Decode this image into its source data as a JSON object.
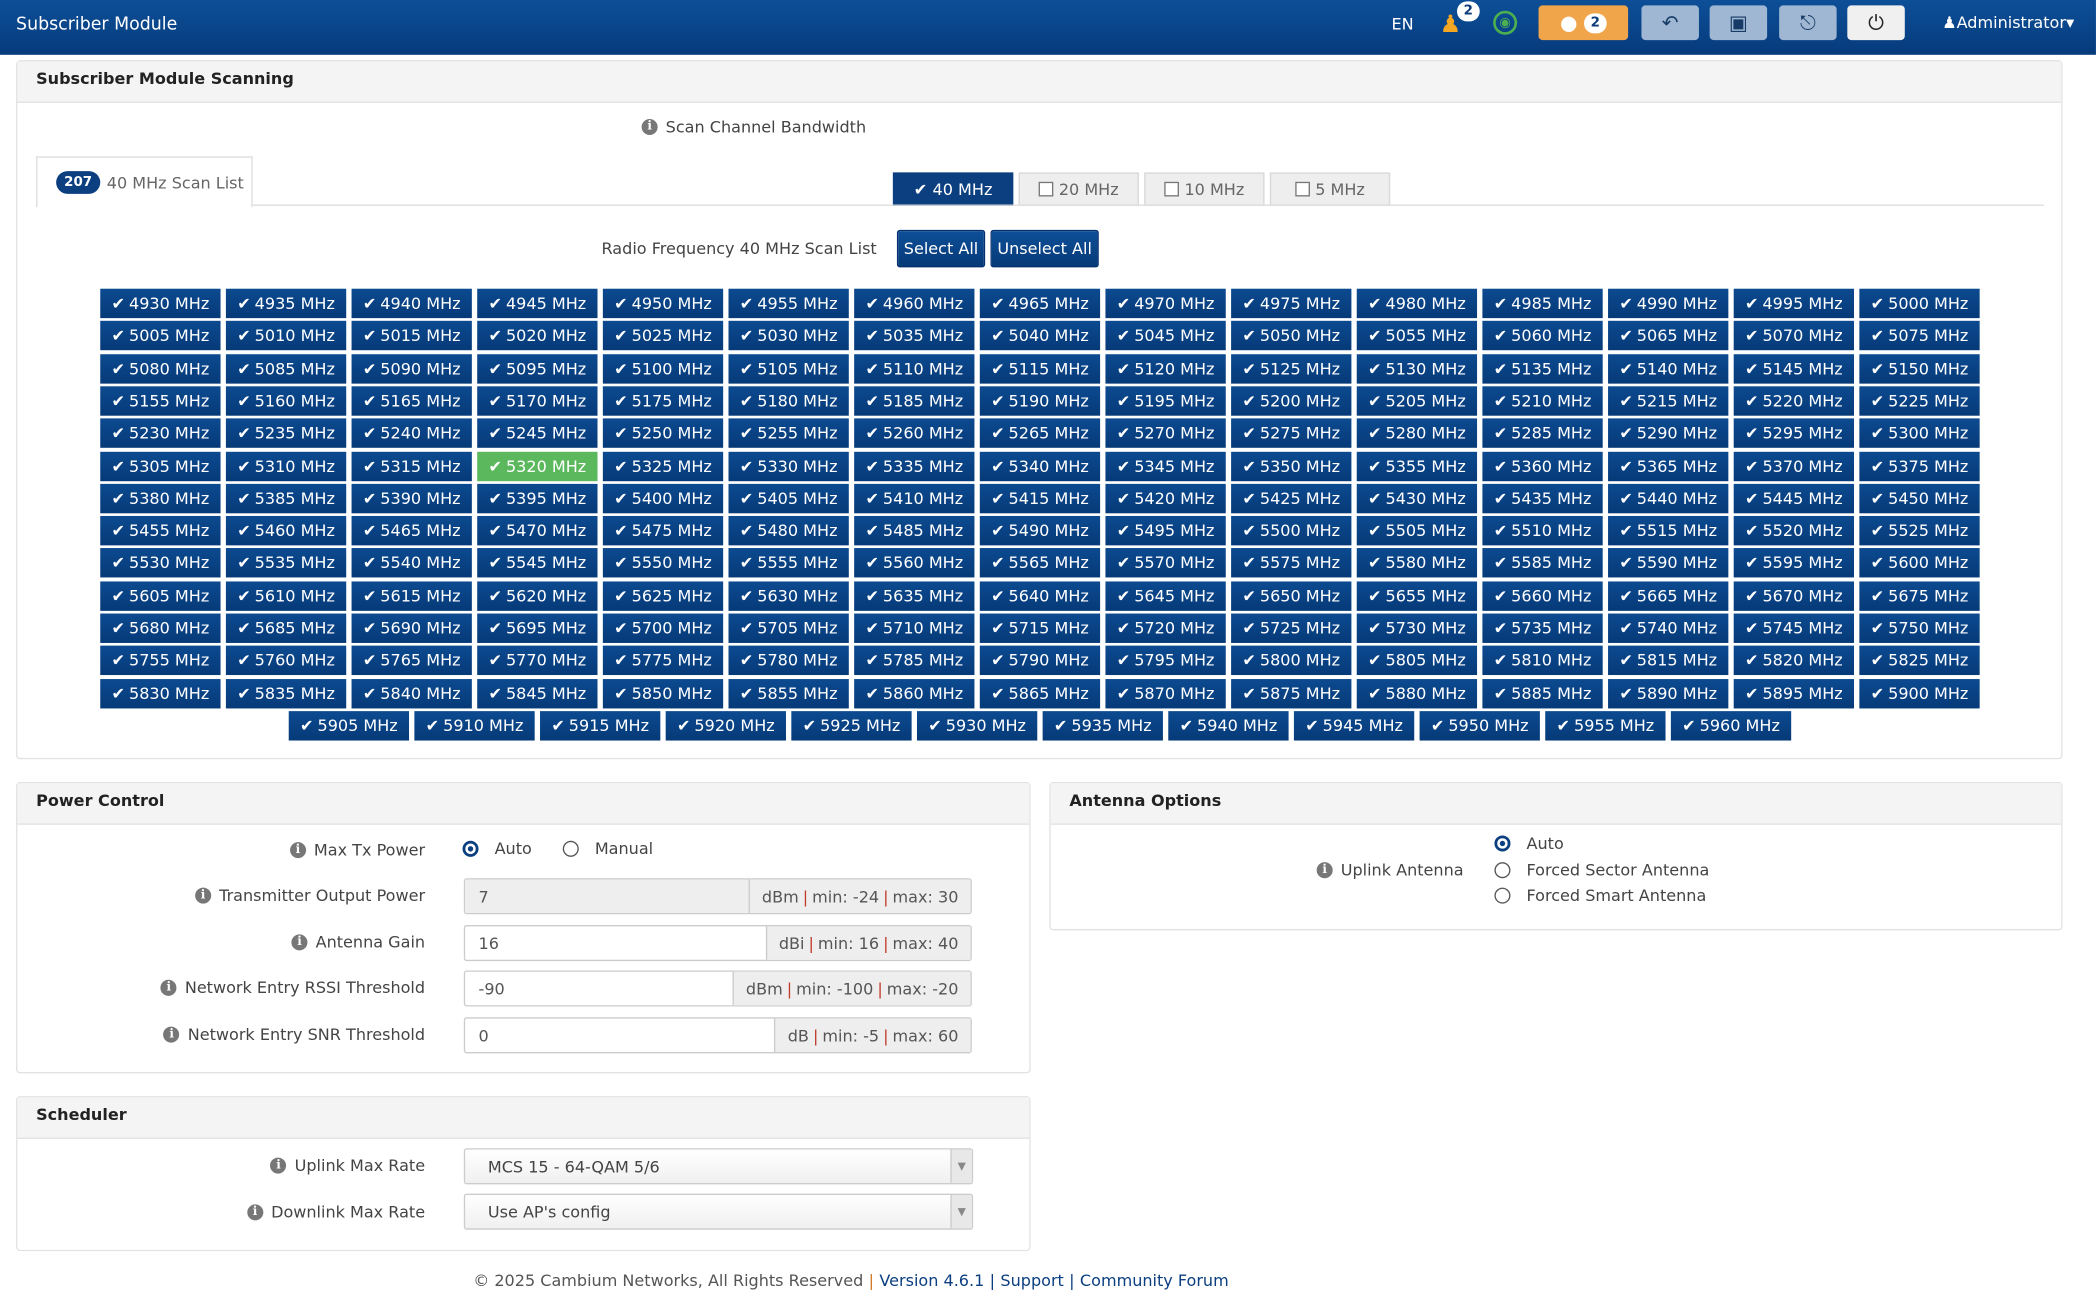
{
  "header": {
    "title": "Subscriber Module",
    "lang": "EN",
    "users_badge": "2",
    "alerts_badge": "2",
    "user": "Administrator",
    "icons": [
      "user-icon",
      "globe-icon",
      "lightbulb-icon",
      "undo-icon",
      "save-icon",
      "reboot-icon",
      "power-icon"
    ]
  },
  "scan": {
    "title": "Subscriber Module Scanning",
    "bw_label": "Scan Channel Bandwidth",
    "bw_options": [
      {
        "label": "40 MHz",
        "checked": true
      },
      {
        "label": "20 MHz",
        "checked": false
      },
      {
        "label": "10 MHz",
        "checked": false
      },
      {
        "label": "5 MHz",
        "checked": false
      }
    ],
    "tab_count": "207",
    "tab_label": "40 MHz Scan List",
    "list_label": "Radio Frequency 40 MHz Scan List",
    "select_all": "Select All",
    "unselect_all": "Unselect All",
    "unit": "MHz",
    "highlighted": 5320,
    "all_checked": true,
    "channels": [
      4930,
      4935,
      4940,
      4945,
      4950,
      4955,
      4960,
      4965,
      4970,
      4975,
      4980,
      4985,
      4990,
      4995,
      5000,
      5005,
      5010,
      5015,
      5020,
      5025,
      5030,
      5035,
      5040,
      5045,
      5050,
      5055,
      5060,
      5065,
      5070,
      5075,
      5080,
      5085,
      5090,
      5095,
      5100,
      5105,
      5110,
      5115,
      5120,
      5125,
      5130,
      5135,
      5140,
      5145,
      5150,
      5155,
      5160,
      5165,
      5170,
      5175,
      5180,
      5185,
      5190,
      5195,
      5200,
      5205,
      5210,
      5215,
      5220,
      5225,
      5230,
      5235,
      5240,
      5245,
      5250,
      5255,
      5260,
      5265,
      5270,
      5275,
      5280,
      5285,
      5290,
      5295,
      5300,
      5305,
      5310,
      5315,
      5320,
      5325,
      5330,
      5335,
      5340,
      5345,
      5350,
      5355,
      5360,
      5365,
      5370,
      5375,
      5380,
      5385,
      5390,
      5395,
      5400,
      5405,
      5410,
      5415,
      5420,
      5425,
      5430,
      5435,
      5440,
      5445,
      5450,
      5455,
      5460,
      5465,
      5470,
      5475,
      5480,
      5485,
      5490,
      5495,
      5500,
      5505,
      5510,
      5515,
      5520,
      5525,
      5530,
      5535,
      5540,
      5545,
      5550,
      5555,
      5560,
      5565,
      5570,
      5575,
      5580,
      5585,
      5590,
      5595,
      5600,
      5605,
      5610,
      5615,
      5620,
      5625,
      5630,
      5635,
      5640,
      5645,
      5650,
      5655,
      5660,
      5665,
      5670,
      5675,
      5680,
      5685,
      5690,
      5695,
      5700,
      5705,
      5710,
      5715,
      5720,
      5725,
      5730,
      5735,
      5740,
      5745,
      5750,
      5755,
      5760,
      5765,
      5770,
      5775,
      5780,
      5785,
      5790,
      5795,
      5800,
      5805,
      5810,
      5815,
      5820,
      5825,
      5830,
      5835,
      5840,
      5845,
      5850,
      5855,
      5860,
      5865,
      5870,
      5875,
      5880,
      5885,
      5890,
      5895,
      5900,
      5905,
      5910,
      5915,
      5920,
      5925,
      5930,
      5935,
      5940,
      5945,
      5950,
      5955,
      5960
    ]
  },
  "power": {
    "title": "Power Control",
    "max_tx_label": "Max Tx Power",
    "max_tx_options": [
      "Auto",
      "Manual"
    ],
    "max_tx_selected": "Auto",
    "fields": [
      {
        "label": "Transmitter Output Power",
        "value": "7",
        "unit": "dBm",
        "min": "min: -24",
        "max": "max: 30",
        "readonly": true
      },
      {
        "label": "Antenna Gain",
        "value": "16",
        "unit": "dBi",
        "min": "min: 16",
        "max": "max: 40",
        "readonly": false
      },
      {
        "label": "Network Entry RSSI Threshold",
        "value": "-90",
        "unit": "dBm",
        "min": "min: -100",
        "max": "max: -20",
        "readonly": false
      },
      {
        "label": "Network Entry SNR Threshold",
        "value": "0",
        "unit": "dB",
        "min": "min: -5",
        "max": "max: 60",
        "readonly": false
      }
    ]
  },
  "antenna": {
    "title": "Antenna Options",
    "label": "Uplink Antenna",
    "options": [
      "Auto",
      "Forced Sector Antenna",
      "Forced Smart Antenna"
    ],
    "selected": "Auto"
  },
  "scheduler": {
    "title": "Scheduler",
    "uplink_label": "Uplink Max Rate",
    "uplink_value": "MCS 15 - 64-QAM 5/6",
    "downlink_label": "Downlink Max Rate",
    "downlink_value": "Use AP's config"
  },
  "footer": {
    "copyright": "© 2025 Cambium Networks, All Rights Reserved",
    "version": "Version 4.6.1",
    "support": "Support",
    "forum": "Community Forum"
  },
  "colors": {
    "primary": "#0b3f80",
    "highlight": "#5cb85c",
    "alert": "#f0a54a"
  }
}
